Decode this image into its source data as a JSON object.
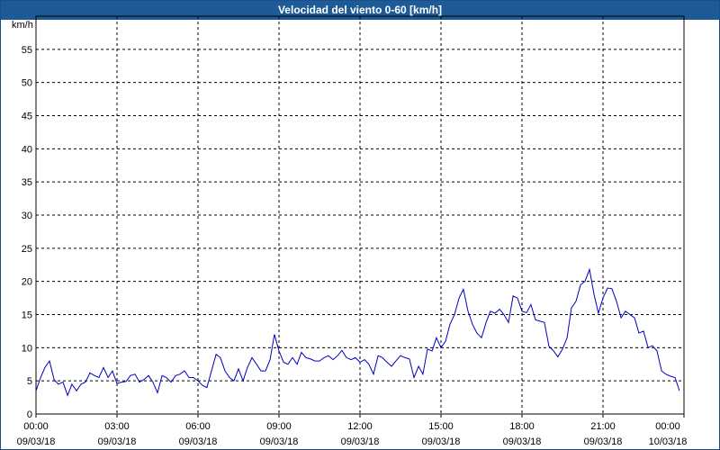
{
  "chart_data": {
    "type": "line",
    "title": "Velocidad del viento 0-60 [km/h]",
    "ylabel": "km/h",
    "ylim": [
      0,
      60
    ],
    "yticks": [
      0,
      5,
      10,
      15,
      20,
      25,
      30,
      35,
      40,
      45,
      50,
      55
    ],
    "xlim_hours": [
      0,
      24
    ],
    "xticks": [
      {
        "hour": 0,
        "time": "00:00",
        "date": "09/03/18"
      },
      {
        "hour": 3,
        "time": "03:00",
        "date": "09/03/18"
      },
      {
        "hour": 6,
        "time": "06:00",
        "date": "09/03/18"
      },
      {
        "hour": 9,
        "time": "09:00",
        "date": "09/03/18"
      },
      {
        "hour": 12,
        "time": "12:00",
        "date": "09/03/18"
      },
      {
        "hour": 15,
        "time": "15:00",
        "date": "09/03/18"
      },
      {
        "hour": 18,
        "time": "18:00",
        "date": "09/03/18"
      },
      {
        "hour": 21,
        "time": "21:00",
        "date": "09/03/18"
      },
      {
        "hour": 24,
        "time": "00:00",
        "date": "10/03/18"
      }
    ],
    "grid": true,
    "line_color": "#0000c0",
    "series": [
      {
        "x": [
          0.0,
          0.17,
          0.33,
          0.5,
          0.67,
          0.83,
          1.0,
          1.17,
          1.33,
          1.5,
          1.67,
          1.83,
          2.0,
          2.17,
          2.33,
          2.5,
          2.67,
          2.83,
          3.0,
          3.17,
          3.33,
          3.5,
          3.67,
          3.83,
          4.0,
          4.17,
          4.33,
          4.5,
          4.67,
          4.83,
          5.0,
          5.17,
          5.33,
          5.5,
          5.67,
          5.83,
          6.0,
          6.17,
          6.33,
          6.5,
          6.67,
          6.83,
          7.0,
          7.17,
          7.33,
          7.5,
          7.67,
          7.83,
          8.0,
          8.17,
          8.33,
          8.5,
          8.67,
          8.83,
          9.0,
          9.17,
          9.33,
          9.5,
          9.67,
          9.83,
          10.0,
          10.17,
          10.33,
          10.5,
          10.67,
          10.83,
          11.0,
          11.17,
          11.33,
          11.5,
          11.67,
          11.83,
          12.0,
          12.17,
          12.33,
          12.5,
          12.67,
          12.83,
          13.0,
          13.17,
          13.33,
          13.5,
          13.67,
          13.83,
          14.0,
          14.17,
          14.33,
          14.5,
          14.67,
          14.83,
          15.0,
          15.17,
          15.33,
          15.5,
          15.67,
          15.83,
          16.0,
          16.17,
          16.33,
          16.5,
          16.67,
          16.83,
          17.0,
          17.17,
          17.33,
          17.5,
          17.67,
          17.83,
          18.0,
          18.17,
          18.33,
          18.5,
          18.67,
          18.83,
          19.0,
          19.17,
          19.33,
          19.5,
          19.67,
          19.83,
          20.0,
          20.17,
          20.33,
          20.5,
          20.67,
          20.83,
          21.0,
          21.17,
          21.33,
          21.5,
          21.67,
          21.83,
          22.0,
          22.17,
          22.33,
          22.5,
          22.67,
          22.83,
          23.0,
          23.17,
          23.33,
          23.5,
          23.67,
          23.83
        ],
        "y": [
          3.5,
          5.5,
          7.0,
          8.0,
          5.2,
          4.5,
          4.8,
          2.8,
          4.5,
          3.5,
          4.5,
          4.8,
          6.2,
          5.8,
          5.5,
          7.0,
          5.5,
          6.5,
          4.6,
          4.8,
          4.9,
          5.8,
          6.0,
          4.8,
          5.2,
          5.8,
          4.8,
          3.2,
          5.8,
          5.5,
          4.8,
          5.8,
          6.0,
          6.5,
          5.5,
          5.5,
          5.0,
          4.3,
          4.0,
          6.5,
          9.0,
          8.5,
          6.5,
          5.5,
          5.0,
          6.8,
          5.0,
          7.0,
          8.5,
          7.5,
          6.5,
          6.5,
          8.2,
          12.0,
          9.5,
          7.8,
          7.5,
          8.5,
          7.5,
          9.3,
          8.5,
          8.3,
          8.0,
          8.0,
          8.5,
          8.8,
          8.2,
          8.8,
          9.6,
          8.5,
          8.2,
          8.5,
          7.8,
          8.2,
          7.5,
          6.0,
          8.8,
          8.5,
          7.8,
          7.2,
          8.0,
          8.8,
          8.5,
          8.3,
          5.5,
          7.2,
          6.0,
          9.8,
          9.5,
          11.5,
          10.0,
          11.0,
          13.5,
          15.0,
          17.5,
          18.8,
          15.5,
          13.5,
          12.2,
          11.5,
          13.8,
          15.5,
          15.2,
          15.8,
          15.0,
          13.8,
          17.8,
          17.5,
          15.5,
          15.3,
          16.5,
          14.2,
          14.0,
          13.8,
          10.2,
          9.5,
          8.6,
          9.8,
          11.5,
          16.0,
          17.0,
          19.5,
          20.0,
          21.8,
          18.0,
          15.2,
          17.5,
          19.0,
          18.9,
          17.0,
          14.5,
          15.5,
          15.0,
          14.5,
          12.2,
          12.5,
          10.0,
          10.3,
          9.5,
          6.5,
          6.0,
          5.7,
          5.5,
          3.5
        ]
      }
    ]
  }
}
